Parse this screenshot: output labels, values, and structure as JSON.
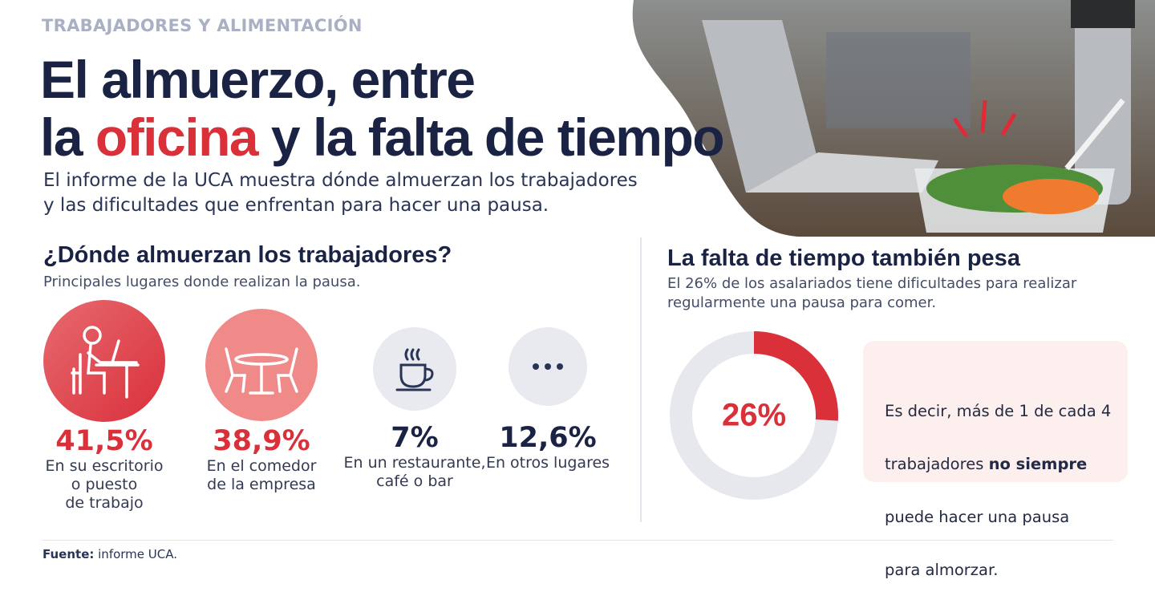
{
  "header": {
    "kicker": "TRABAJADORES Y ALIMENTACIÓN",
    "title_line1": "El almuerzo, entre",
    "title_line2": [
      "la ",
      "oficina",
      " y la falta de tiempo"
    ],
    "intro": [
      "El informe de la UCA muestra dónde almuerzan los trabajadores",
      "y las dificultades que enfrentan para hacer una pausa."
    ]
  },
  "places": {
    "title": "¿Dónde almuerzan los trabajadores?",
    "subtitle": "Principales lugares donde realizan la pausa.",
    "items": [
      {
        "value": "41,5%",
        "label": [
          "En su escritorio",
          "o puesto",
          "de trabajo"
        ]
      },
      {
        "value": "38,9%",
        "label": [
          "En el comedor",
          "de la empresa"
        ]
      },
      {
        "value": "7%",
        "label": [
          "En un restaurante,",
          "café o bar"
        ]
      },
      {
        "value": "12,6%",
        "label": [
          "En otros lugares"
        ]
      }
    ]
  },
  "time": {
    "title": "La falta de tiempo también pesa",
    "text": [
      "El 26% de los asalariados tiene dificultades para realizar",
      "regularmente una pausa para comer."
    ],
    "note": [
      "Es decir, más de 1 de cada 4",
      "trabajadores ",
      "no siempre",
      "puede hacer una pausa",
      "para almorzar."
    ]
  },
  "chart_data": {
    "type": "pie",
    "values": [
      26
    ],
    "value_labels": [
      "26%"
    ],
    "ylim": [
      0,
      100
    ],
    "color": "#d9303a"
  },
  "footer": [
    "Fuente:",
    " informe UCA."
  ]
}
